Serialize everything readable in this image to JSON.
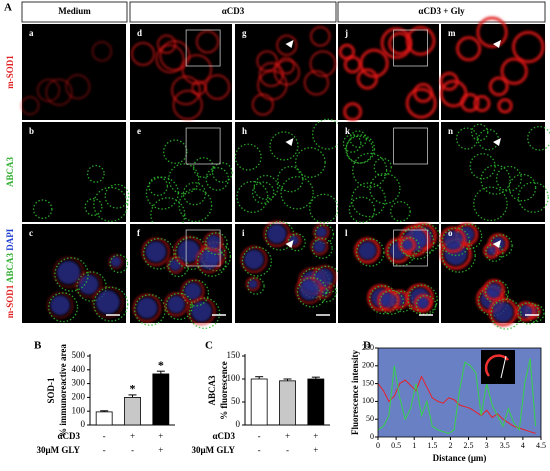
{
  "figure": {
    "panel_label": "A",
    "columns": [
      "Medium",
      "αCD3",
      "αCD3 + Gly"
    ],
    "rows": [
      [
        "m-SOD1"
      ],
      [
        "ABCA3"
      ],
      [
        "m-SOD1",
        "ABCA3",
        "DAPI"
      ]
    ],
    "image_labels": [
      [
        "a",
        "d",
        "g",
        "j",
        "m"
      ],
      [
        "b",
        "e",
        "h",
        "k",
        "n"
      ],
      [
        "c",
        "f",
        "i",
        "l",
        "o"
      ]
    ]
  },
  "chart_data": [
    {
      "type": "bar",
      "panel_label": "B",
      "y_label": [
        "SOD-1",
        "% immunoreactive area"
      ],
      "categories": [
        null,
        null,
        null
      ],
      "values": [
        95,
        200,
        370
      ],
      "errors": [
        8,
        18,
        20
      ],
      "annotations": [
        null,
        "*",
        "*"
      ],
      "colors": [
        "#ffffff",
        "#c8c8c8",
        "#000000"
      ],
      "ylim": [
        0,
        500
      ],
      "yticks": [
        0,
        100,
        200,
        300,
        400,
        500
      ],
      "conditions": [
        {
          "name": "αCD3",
          "marks": [
            "-",
            "+",
            "+"
          ]
        },
        {
          "name": "30μM GLY",
          "marks": [
            "-",
            "-",
            "+"
          ]
        }
      ]
    },
    {
      "type": "bar",
      "panel_label": "C",
      "y_label": [
        "ABCA3",
        "% fluorescence"
      ],
      "categories": [
        null,
        null,
        null
      ],
      "values": [
        100,
        96,
        100
      ],
      "errors": [
        5,
        4,
        4
      ],
      "annotations": [
        null,
        null,
        null
      ],
      "colors": [
        "#ffffff",
        "#c8c8c8",
        "#000000"
      ],
      "ylim": [
        0,
        150
      ],
      "yticks": [
        0,
        50,
        100,
        150
      ],
      "conditions": [
        {
          "name": "αCD3",
          "marks": [
            "-",
            "+",
            "+"
          ]
        },
        {
          "name": "30μM GLY",
          "marks": [
            "-",
            "-",
            "+"
          ]
        }
      ]
    },
    {
      "type": "line",
      "panel_label": "D",
      "x_label": "Distance (μm)",
      "y_label": "Fluorescence intensity",
      "background": "#6a80c4",
      "x": [
        0,
        0.15,
        0.3,
        0.45,
        0.6,
        0.75,
        0.9,
        1.05,
        1.2,
        1.35,
        1.5,
        1.65,
        1.8,
        1.95,
        2.1,
        2.25,
        2.4,
        2.55,
        2.7,
        2.85,
        3,
        3.15,
        3.3,
        3.45,
        3.6,
        3.75,
        3.9,
        4.05,
        4.2,
        4.35
      ],
      "series": [
        {
          "color": "#e8202a",
          "values": [
            150,
            130,
            100,
            115,
            150,
            160,
            145,
            130,
            170,
            140,
            110,
            100,
            95,
            110,
            105,
            90,
            85,
            80,
            70,
            60,
            75,
            55,
            65,
            50,
            40,
            30,
            25,
            20,
            15,
            10
          ]
        },
        {
          "color": "#35d04a",
          "values": [
            20,
            30,
            60,
            200,
            110,
            50,
            80,
            150,
            60,
            100,
            30,
            20,
            15,
            10,
            20,
            130,
            210,
            200,
            180,
            60,
            150,
            90,
            60,
            30,
            80,
            40,
            20,
            150,
            220,
            30
          ]
        }
      ],
      "xlim": [
        0,
        4.5
      ],
      "xticks": [
        0,
        0.5,
        1,
        1.5,
        2,
        2.5,
        3,
        3.5,
        4,
        4.5
      ],
      "ylim": [
        0,
        250
      ],
      "yticks": [
        0,
        50,
        100,
        150,
        200,
        250
      ]
    }
  ]
}
